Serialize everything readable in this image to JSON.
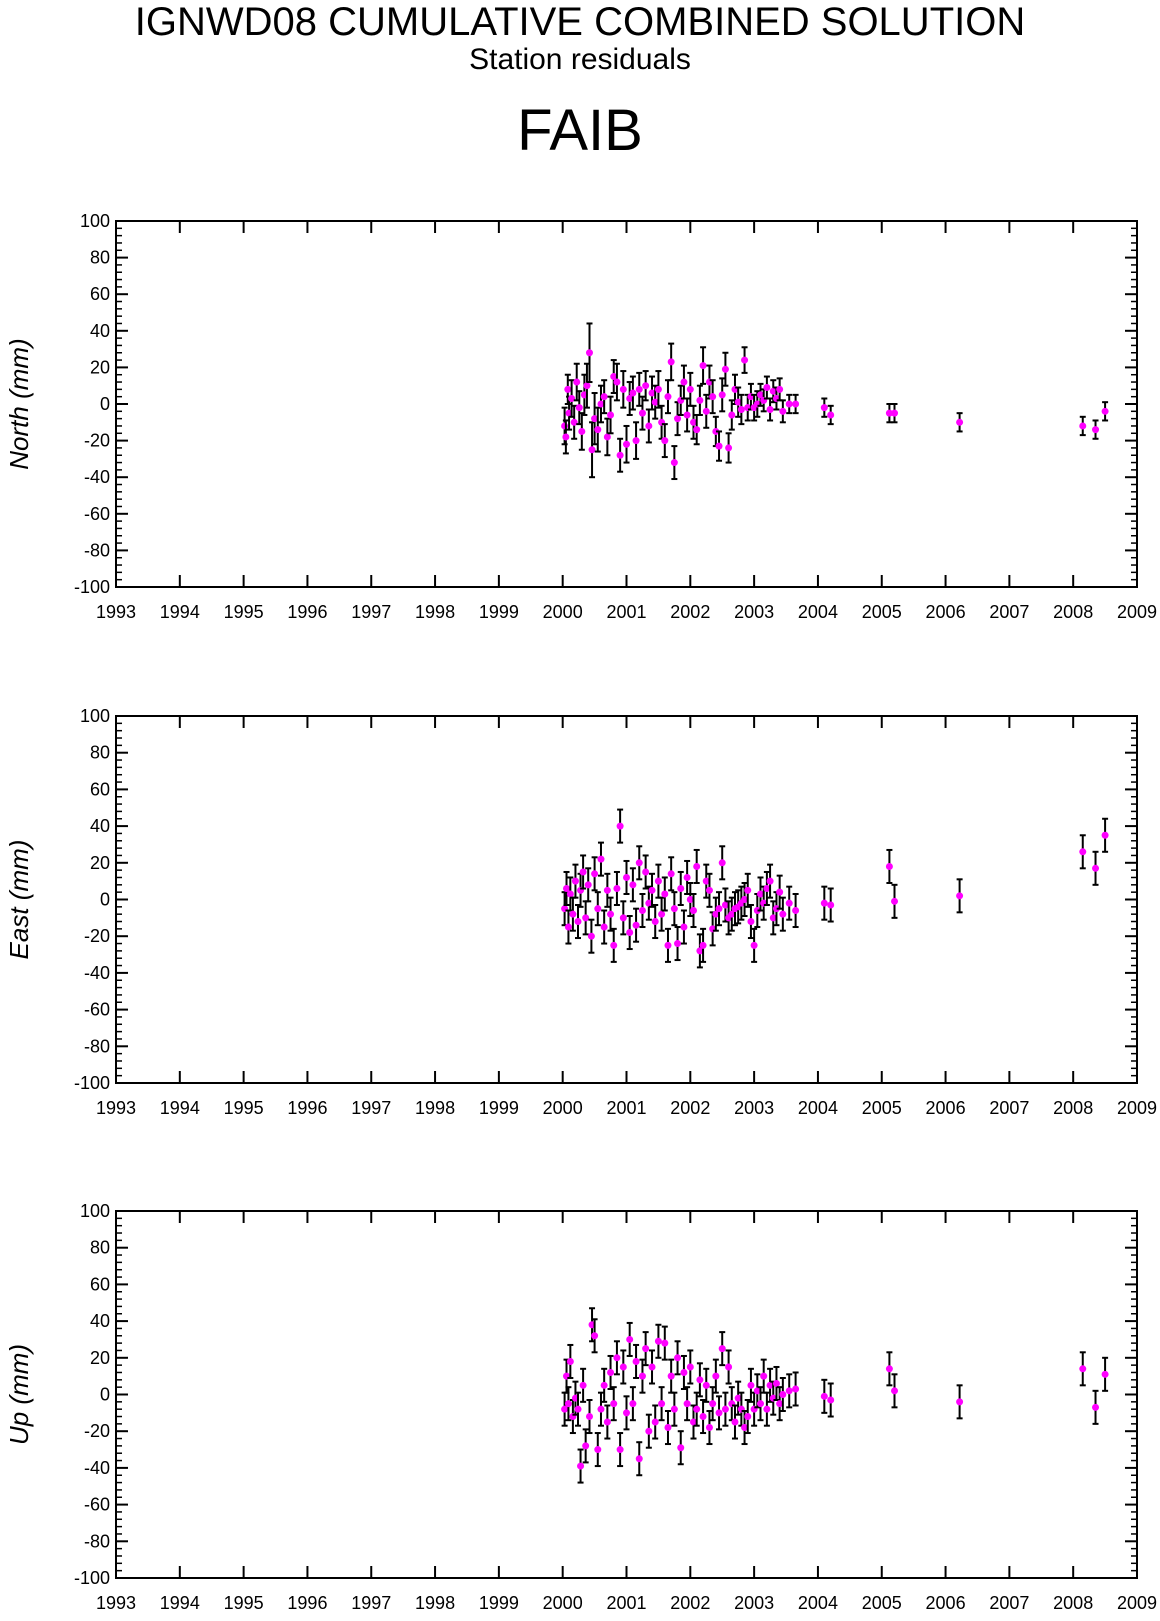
{
  "header": {
    "title": "IGNWD08 CUMULATIVE COMBINED SOLUTION",
    "subtitle": "Station residuals",
    "station": "FAIB"
  },
  "colors": {
    "point": "#ff00ff",
    "errorbar": "#000000",
    "axis": "#000000",
    "background": "#ffffff"
  },
  "chart_data": [
    {
      "type": "scatter",
      "ylabel": "North (mm)",
      "xlim": [
        1993,
        2009
      ],
      "ylim": [
        -100,
        100
      ],
      "x_ticks": [
        1993,
        1994,
        1995,
        1996,
        1997,
        1998,
        1999,
        2000,
        2001,
        2002,
        2003,
        2004,
        2005,
        2006,
        2007,
        2008,
        2009
      ],
      "y_ticks": [
        -100,
        -80,
        -60,
        -40,
        -20,
        0,
        20,
        40,
        60,
        80,
        100
      ],
      "grid": false,
      "series": [
        {
          "x": [
            2000.03,
            2000.05,
            2000.08,
            2000.1,
            2000.14,
            2000.18,
            2000.22,
            2000.26,
            2000.3,
            2000.34,
            2000.38,
            2000.42,
            2000.46,
            2000.5,
            2000.55,
            2000.6,
            2000.65,
            2000.7,
            2000.75,
            2000.8,
            2000.85,
            2000.9,
            2000.95,
            2001.0,
            2001.05,
            2001.1,
            2001.15,
            2001.2,
            2001.25,
            2001.3,
            2001.35,
            2001.4,
            2001.45,
            2001.5,
            2001.55,
            2001.6,
            2001.65,
            2001.7,
            2001.75,
            2001.8,
            2001.85,
            2001.9,
            2001.95,
            2002.0,
            2002.05,
            2002.1,
            2002.15,
            2002.2,
            2002.25,
            2002.3,
            2002.35,
            2002.4,
            2002.45,
            2002.5,
            2002.55,
            2002.6,
            2002.65,
            2002.7,
            2002.75,
            2002.8,
            2002.85,
            2002.9,
            2002.95,
            2003.0,
            2003.05,
            2003.1,
            2003.15,
            2003.2,
            2003.25,
            2003.3,
            2003.35,
            2003.4,
            2003.45,
            2003.55,
            2003.65,
            2004.1,
            2004.2,
            2005.12,
            2005.2,
            2006.22,
            2008.15,
            2008.35,
            2008.5
          ],
          "y": [
            -12,
            -18,
            8,
            -5,
            3,
            -10,
            12,
            -2,
            -15,
            5,
            10,
            28,
            -25,
            -8,
            -14,
            0,
            4,
            -18,
            -6,
            15,
            12,
            -28,
            8,
            -22,
            3,
            6,
            -20,
            8,
            -5,
            10,
            -12,
            6,
            1,
            8,
            -10,
            -20,
            4,
            23,
            -32,
            -8,
            2,
            12,
            -6,
            8,
            -10,
            -14,
            2,
            21,
            -4,
            12,
            4,
            -15,
            -23,
            5,
            19,
            -24,
            -6,
            8,
            1,
            -3,
            24,
            -2,
            4,
            -2,
            0,
            5,
            2,
            9,
            -3,
            7,
            3,
            8,
            -4,
            0,
            0,
            -2,
            -6,
            -5,
            -5,
            -10,
            -12,
            -14,
            -4
          ],
          "yerr": [
            10,
            9,
            8,
            9,
            10,
            9,
            10,
            9,
            10,
            11,
            12,
            16,
            15,
            14,
            12,
            10,
            9,
            10,
            10,
            9,
            10,
            9,
            10,
            10,
            9,
            9,
            10,
            9,
            9,
            8,
            9,
            9,
            9,
            10,
            9,
            9,
            9,
            10,
            9,
            9,
            8,
            9,
            9,
            9,
            9,
            8,
            8,
            10,
            9,
            9,
            9,
            8,
            8,
            9,
            9,
            8,
            8,
            8,
            8,
            8,
            7,
            7,
            7,
            7,
            7,
            6,
            6,
            6,
            6,
            6,
            6,
            6,
            6,
            5,
            5,
            5,
            5,
            5,
            5,
            5,
            5,
            5,
            5
          ]
        }
      ]
    },
    {
      "type": "scatter",
      "ylabel": "East (mm)",
      "xlim": [
        1993,
        2009
      ],
      "ylim": [
        -100,
        100
      ],
      "x_ticks": [
        1993,
        1994,
        1995,
        1996,
        1997,
        1998,
        1999,
        2000,
        2001,
        2002,
        2003,
        2004,
        2005,
        2006,
        2007,
        2008,
        2009
      ],
      "y_ticks": [
        -100,
        -80,
        -60,
        -40,
        -20,
        0,
        20,
        40,
        60,
        80,
        100
      ],
      "grid": false,
      "series": [
        {
          "x": [
            2000.03,
            2000.06,
            2000.09,
            2000.12,
            2000.16,
            2000.2,
            2000.24,
            2000.28,
            2000.32,
            2000.36,
            2000.4,
            2000.45,
            2000.5,
            2000.55,
            2000.6,
            2000.65,
            2000.7,
            2000.75,
            2000.8,
            2000.85,
            2000.9,
            2000.95,
            2001.0,
            2001.05,
            2001.1,
            2001.15,
            2001.2,
            2001.25,
            2001.3,
            2001.35,
            2001.4,
            2001.45,
            2001.5,
            2001.55,
            2001.6,
            2001.65,
            2001.7,
            2001.75,
            2001.8,
            2001.85,
            2001.9,
            2001.95,
            2002.0,
            2002.05,
            2002.1,
            2002.15,
            2002.2,
            2002.25,
            2002.3,
            2002.35,
            2002.4,
            2002.45,
            2002.5,
            2002.55,
            2002.6,
            2002.65,
            2002.7,
            2002.75,
            2002.8,
            2002.85,
            2002.9,
            2002.95,
            2003.0,
            2003.05,
            2003.1,
            2003.15,
            2003.2,
            2003.25,
            2003.3,
            2003.35,
            2003.4,
            2003.45,
            2003.55,
            2003.65,
            2004.1,
            2004.2,
            2005.12,
            2005.2,
            2006.22,
            2008.15,
            2008.35,
            2008.5
          ],
          "y": [
            -5,
            6,
            -15,
            3,
            -8,
            10,
            -12,
            5,
            15,
            -10,
            8,
            -20,
            14,
            -5,
            22,
            -15,
            5,
            -8,
            -25,
            6,
            40,
            -10,
            12,
            -18,
            8,
            -14,
            20,
            -6,
            15,
            -2,
            5,
            -12,
            10,
            -8,
            3,
            -25,
            14,
            -5,
            -24,
            6,
            -15,
            12,
            0,
            -6,
            18,
            -28,
            -25,
            10,
            5,
            -16,
            -8,
            -5,
            20,
            -3,
            -10,
            -8,
            -5,
            -4,
            -2,
            0,
            5,
            -12,
            -25,
            -6,
            3,
            -2,
            6,
            10,
            -10,
            -5,
            4,
            -8,
            -2,
            -6,
            -2,
            -3,
            18,
            -1,
            2,
            26,
            17,
            35
          ]
        }
      ],
      "yerr_default": 9
    },
    {
      "type": "scatter",
      "ylabel": "Up (mm)",
      "xlim": [
        1993,
        2009
      ],
      "ylim": [
        -100,
        100
      ],
      "x_ticks": [
        1993,
        1994,
        1995,
        1996,
        1997,
        1998,
        1999,
        2000,
        2001,
        2002,
        2003,
        2004,
        2005,
        2006,
        2007,
        2008,
        2009
      ],
      "y_ticks": [
        -100,
        -80,
        -60,
        -40,
        -20,
        0,
        20,
        40,
        60,
        80,
        100
      ],
      "grid": false,
      "series": [
        {
          "x": [
            2000.03,
            2000.06,
            2000.09,
            2000.12,
            2000.16,
            2000.2,
            2000.24,
            2000.28,
            2000.32,
            2000.36,
            2000.42,
            2000.46,
            2000.5,
            2000.55,
            2000.6,
            2000.65,
            2000.7,
            2000.75,
            2000.8,
            2000.85,
            2000.9,
            2000.95,
            2001.0,
            2001.05,
            2001.1,
            2001.15,
            2001.2,
            2001.25,
            2001.3,
            2001.35,
            2001.4,
            2001.45,
            2001.5,
            2001.55,
            2001.6,
            2001.65,
            2001.7,
            2001.75,
            2001.8,
            2001.85,
            2001.9,
            2001.95,
            2002.0,
            2002.05,
            2002.1,
            2002.15,
            2002.2,
            2002.25,
            2002.3,
            2002.35,
            2002.4,
            2002.45,
            2002.5,
            2002.55,
            2002.6,
            2002.65,
            2002.7,
            2002.75,
            2002.8,
            2002.85,
            2002.9,
            2002.95,
            2003.0,
            2003.05,
            2003.1,
            2003.15,
            2003.2,
            2003.25,
            2003.3,
            2003.35,
            2003.4,
            2003.45,
            2003.55,
            2003.65,
            2004.1,
            2004.2,
            2005.12,
            2005.2,
            2006.22,
            2008.15,
            2008.35,
            2008.5
          ],
          "y": [
            -8,
            10,
            -5,
            18,
            -12,
            -2,
            -8,
            -39,
            5,
            -28,
            -12,
            38,
            32,
            -30,
            -8,
            5,
            -15,
            12,
            -5,
            20,
            -30,
            15,
            -10,
            30,
            -5,
            18,
            -35,
            10,
            25,
            -20,
            15,
            -15,
            29,
            -5,
            28,
            -18,
            10,
            -8,
            20,
            -29,
            12,
            -5,
            15,
            -15,
            -8,
            8,
            -12,
            5,
            -18,
            -5,
            10,
            -10,
            25,
            -8,
            15,
            -5,
            -15,
            -2,
            -8,
            -18,
            -12,
            5,
            -8,
            2,
            -5,
            10,
            -8,
            5,
            -2,
            6,
            -5,
            0,
            2,
            3,
            -1,
            -3,
            14,
            2,
            -4,
            14,
            -7,
            11
          ]
        }
      ],
      "yerr_default": 9
    }
  ]
}
